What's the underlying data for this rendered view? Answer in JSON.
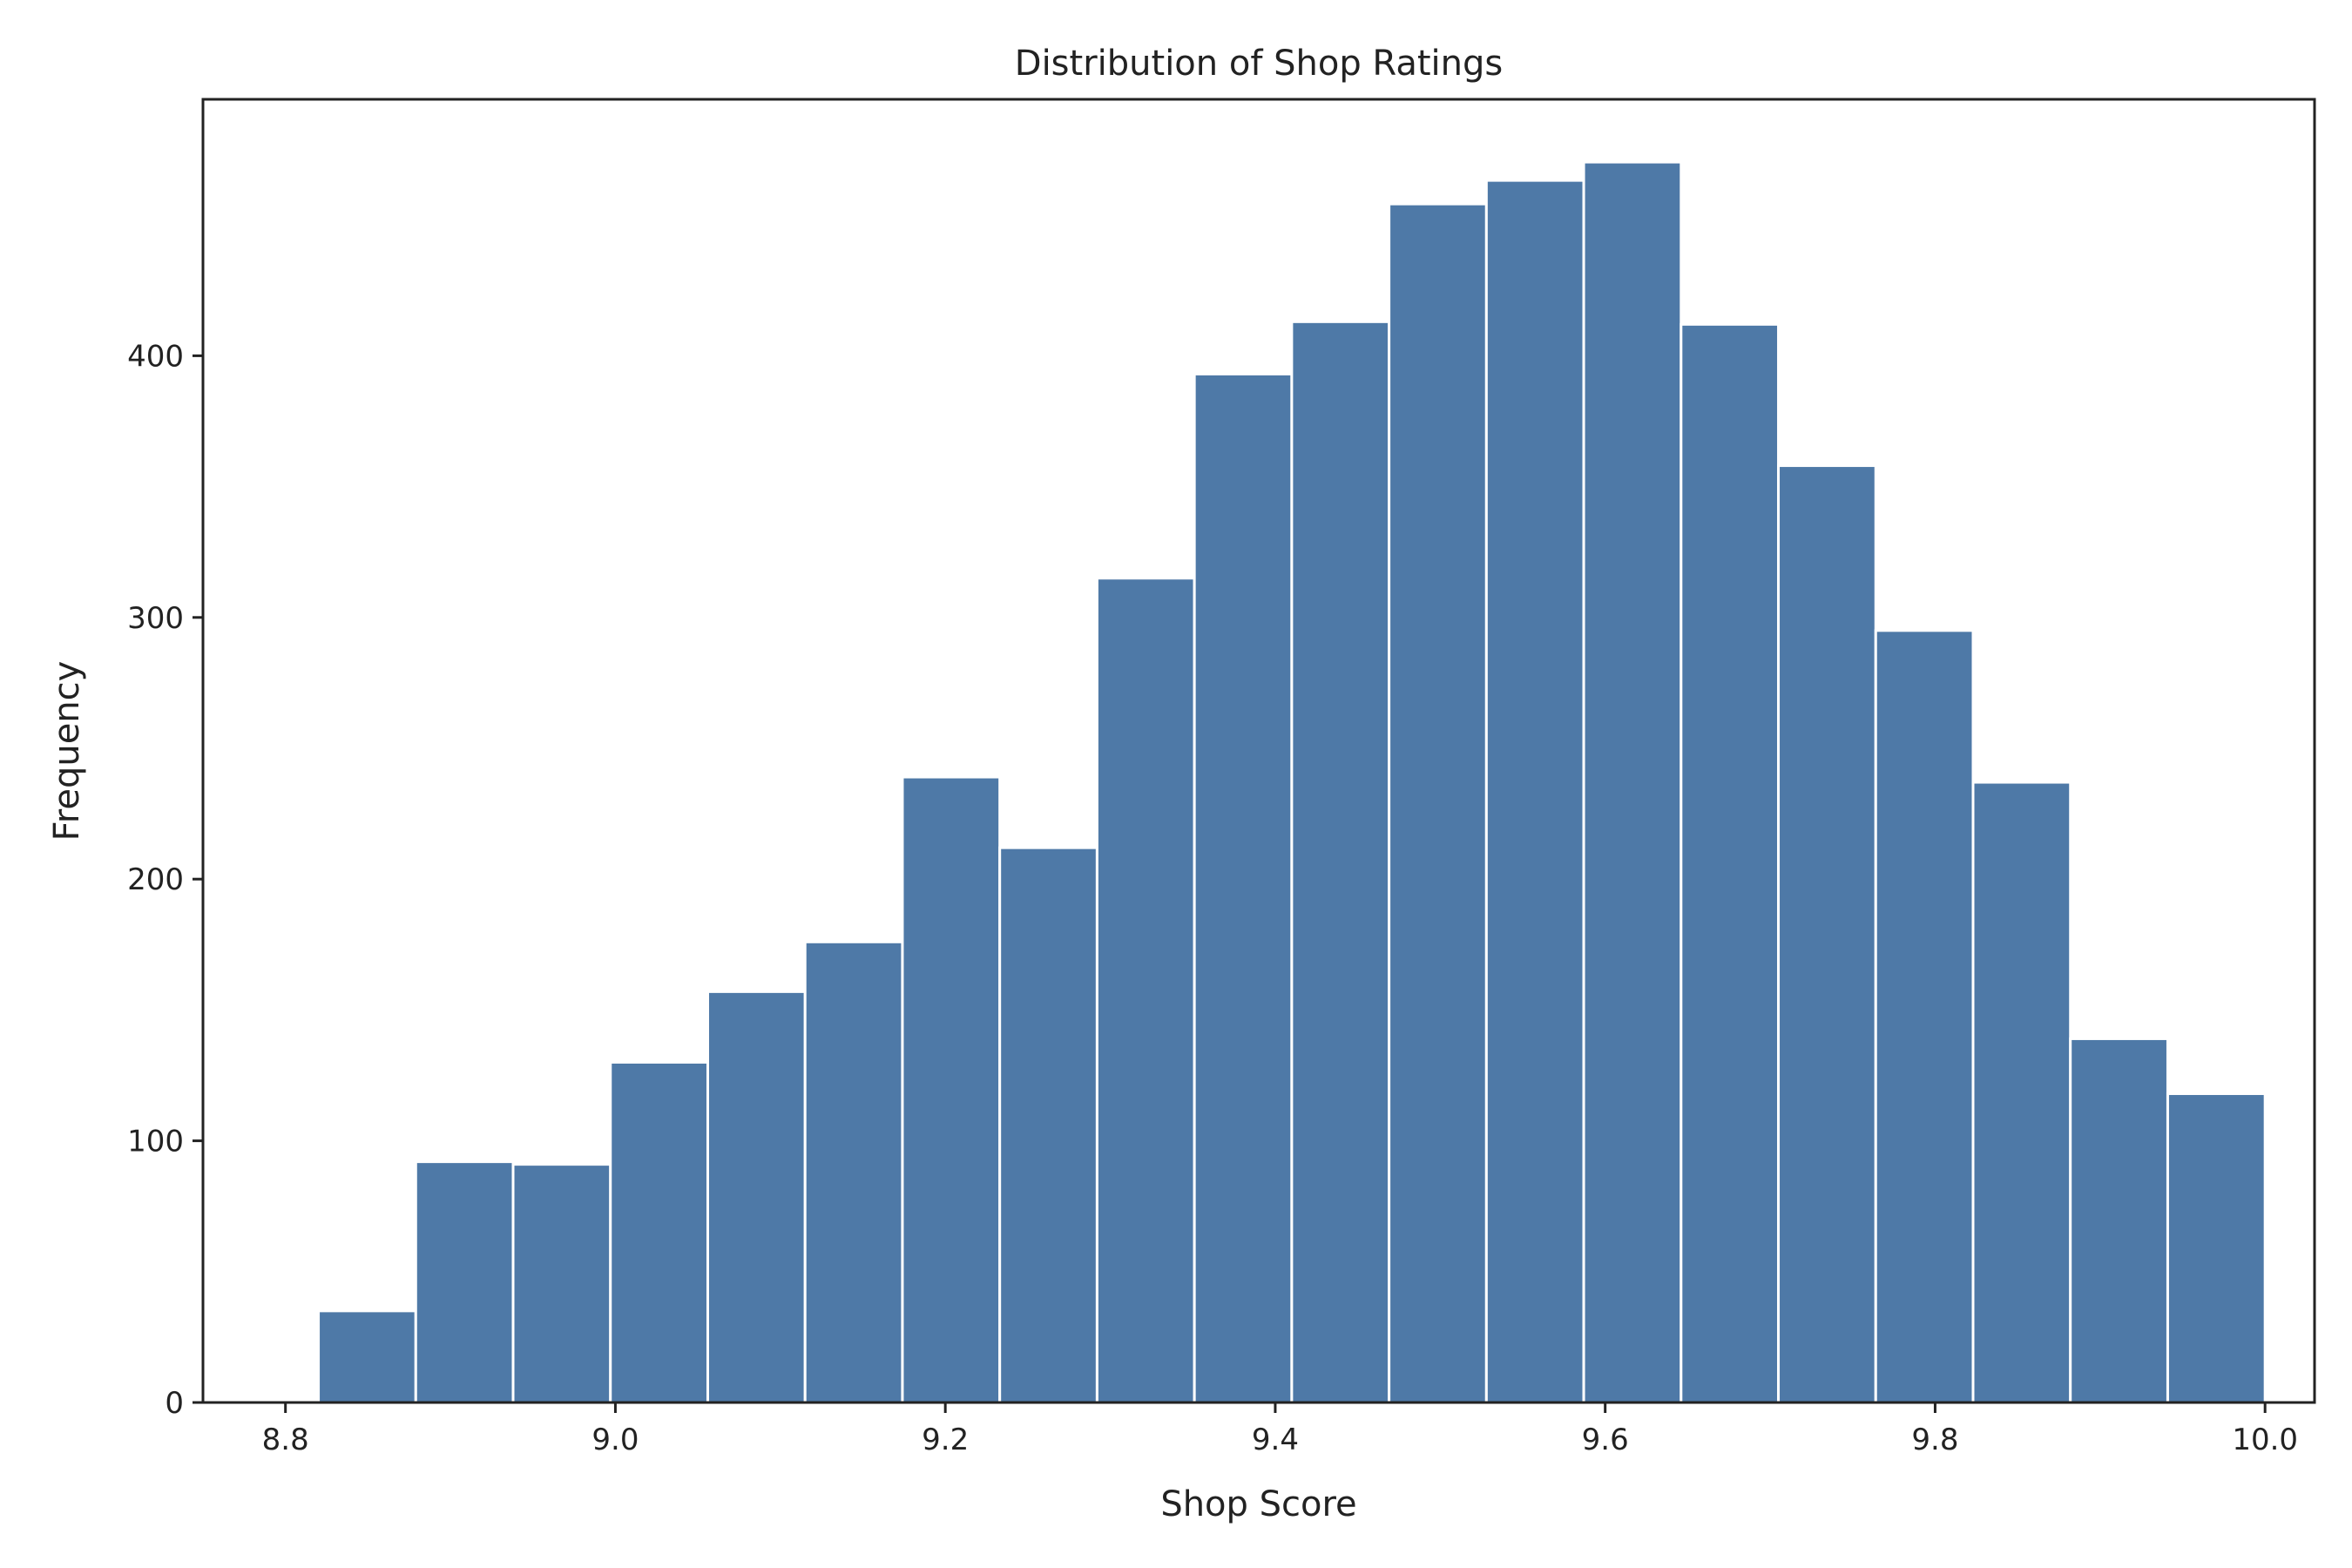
{
  "chart_data": {
    "type": "bar",
    "title": "Distribution of Shop Ratings",
    "xlabel": "Shop Score",
    "ylabel": "Frequency",
    "xlim": [
      8.75,
      10.03
    ],
    "ylim": [
      0,
      498
    ],
    "xticks": [
      8.8,
      9.0,
      9.2,
      9.4,
      9.6,
      9.8,
      10.0
    ],
    "xtick_labels": [
      "8.8",
      "9.0",
      "9.2",
      "9.4",
      "9.6",
      "9.8",
      "10.0"
    ],
    "yticks": [
      0,
      100,
      200,
      300,
      400
    ],
    "ytick_labels": [
      "0",
      "100",
      "200",
      "300",
      "400"
    ],
    "bin_edges": [
      8.82,
      8.879,
      8.938,
      8.997,
      9.056,
      9.115,
      9.174,
      9.233,
      9.292,
      9.351,
      9.41,
      9.469,
      9.528,
      9.587,
      9.646,
      9.705,
      9.764,
      9.823,
      9.882,
      9.941,
      10.0
    ],
    "values": [
      35,
      92,
      91,
      130,
      157,
      176,
      239,
      212,
      315,
      393,
      413,
      458,
      467,
      474,
      412,
      358,
      295,
      237,
      139,
      118
    ],
    "bar_color": "#4e79a7",
    "edge_color": "#ffffff",
    "grid": false,
    "legend": "none"
  }
}
